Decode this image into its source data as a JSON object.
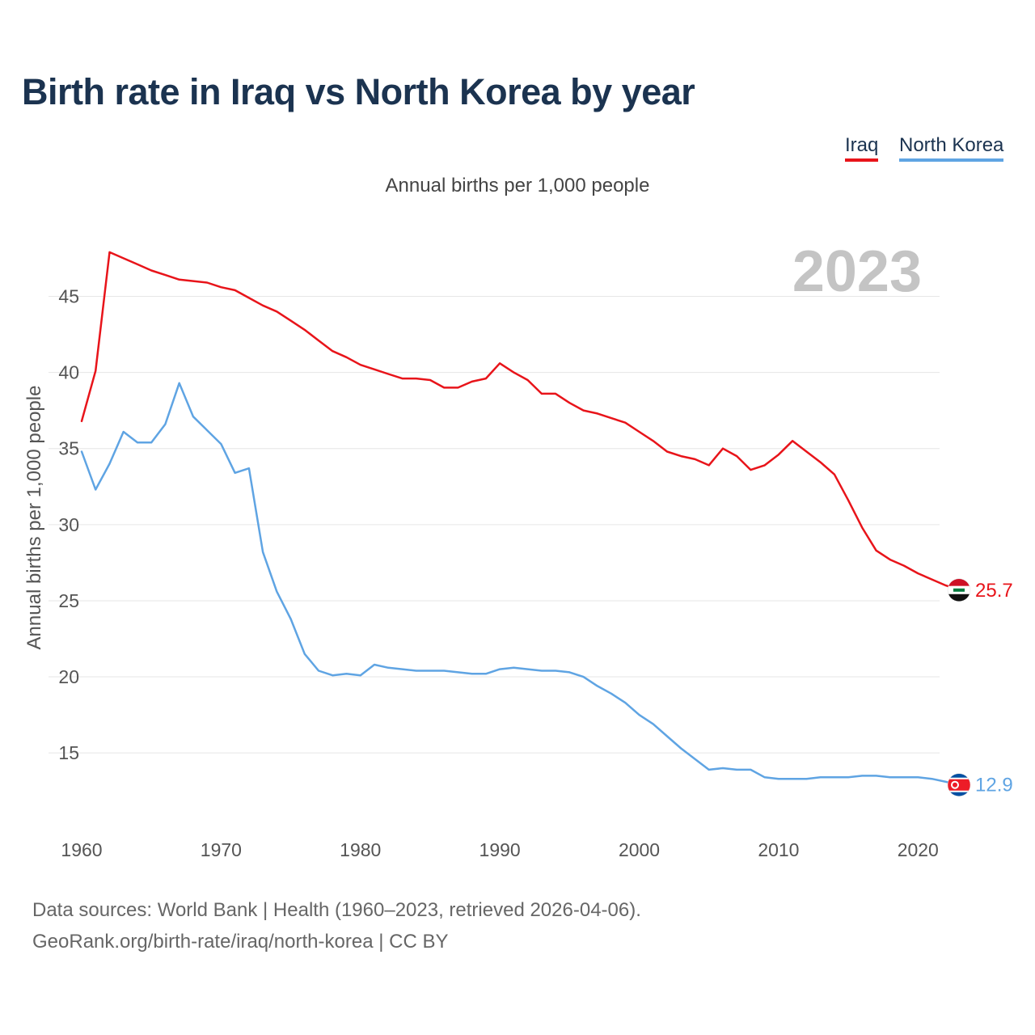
{
  "chart_data": {
    "type": "line",
    "title": "Birth rate in Iraq vs North Korea by year",
    "subtitle": "Annual births per 1,000 people",
    "ylabel": "Annual births per 1,000 people",
    "xlabel": "",
    "year_label": "2023",
    "xlim": [
      1960,
      2023
    ],
    "ylim": [
      10.6,
      48
    ],
    "y_ticks": [
      15,
      20,
      25,
      30,
      35,
      40,
      45
    ],
    "x_ticks": [
      1960,
      1970,
      1980,
      1990,
      2000,
      2010,
      2020
    ],
    "grid": true,
    "legend_position": "top-right",
    "x": [
      1960,
      1961,
      1962,
      1963,
      1964,
      1965,
      1966,
      1967,
      1968,
      1969,
      1970,
      1971,
      1972,
      1973,
      1974,
      1975,
      1976,
      1977,
      1978,
      1979,
      1980,
      1981,
      1982,
      1983,
      1984,
      1985,
      1986,
      1987,
      1988,
      1989,
      1990,
      1991,
      1992,
      1993,
      1994,
      1995,
      1996,
      1997,
      1998,
      1999,
      2000,
      2001,
      2002,
      2003,
      2004,
      2005,
      2006,
      2007,
      2008,
      2009,
      2010,
      2011,
      2012,
      2013,
      2014,
      2015,
      2016,
      2017,
      2018,
      2019,
      2020,
      2021,
      2022,
      2023
    ],
    "series": [
      {
        "name": "Iraq",
        "color": "#e8141a",
        "end_label": "25.7",
        "values": [
          36.8,
          40.1,
          47.9,
          47.5,
          47.1,
          46.7,
          46.4,
          46.1,
          46.0,
          45.9,
          45.6,
          45.4,
          44.9,
          44.4,
          44.0,
          43.4,
          42.8,
          42.1,
          41.4,
          41.0,
          40.5,
          40.2,
          39.9,
          39.6,
          39.6,
          39.5,
          39.0,
          39.0,
          39.4,
          39.6,
          40.6,
          40.0,
          39.5,
          38.6,
          38.6,
          38.0,
          37.5,
          37.3,
          37.0,
          36.7,
          36.1,
          35.5,
          34.8,
          34.5,
          34.3,
          33.9,
          35.0,
          34.5,
          33.6,
          33.9,
          34.6,
          35.5,
          34.8,
          34.1,
          33.3,
          31.6,
          29.8,
          28.3,
          27.7,
          27.3,
          26.8,
          26.4,
          26.0,
          25.7
        ]
      },
      {
        "name": "North Korea",
        "color": "#5fa4e3",
        "end_label": "12.9",
        "values": [
          34.8,
          32.3,
          34.0,
          36.1,
          35.4,
          35.4,
          36.6,
          39.3,
          37.1,
          36.2,
          35.3,
          33.4,
          33.7,
          28.2,
          25.6,
          23.8,
          21.5,
          20.4,
          20.1,
          20.2,
          20.1,
          20.8,
          20.6,
          20.5,
          20.4,
          20.4,
          20.4,
          20.3,
          20.2,
          20.2,
          20.5,
          20.6,
          20.5,
          20.4,
          20.4,
          20.3,
          20.0,
          19.4,
          18.9,
          18.3,
          17.5,
          16.9,
          16.1,
          15.3,
          14.6,
          13.9,
          14.0,
          13.9,
          13.9,
          13.4,
          13.3,
          13.3,
          13.3,
          13.4,
          13.4,
          13.4,
          13.5,
          13.5,
          13.4,
          13.4,
          13.4,
          13.3,
          13.1,
          12.9
        ]
      }
    ]
  },
  "footer": {
    "line1": "Data sources: World Bank | Health (1960–2023, retrieved 2026-04-06).",
    "line2": "GeoRank.org/birth-rate/iraq/north-korea | CC BY"
  }
}
